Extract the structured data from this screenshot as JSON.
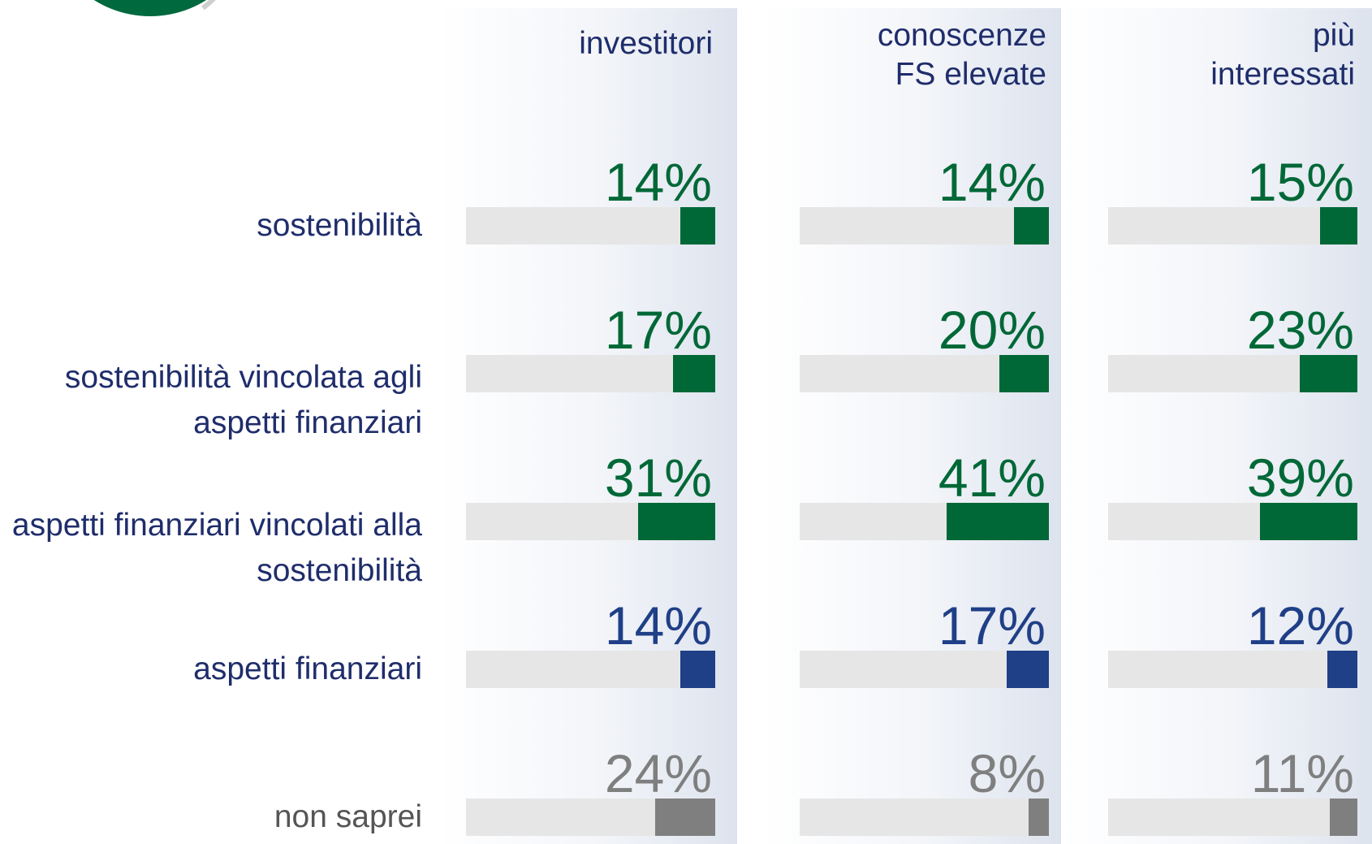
{
  "chart_data": {
    "type": "bar",
    "orientation": "horizontal",
    "categories": [
      "sostenibilità",
      "sostenibilità vincolata agli aspetti finanziari",
      "aspetti finanziari vincolati alla sostenibilità",
      "aspetti finanziari",
      "non saprei"
    ],
    "colors": [
      "#006837",
      "#006837",
      "#006837",
      "#1f3f87",
      "#7f7f7f"
    ],
    "label_colors": [
      "#1f2d6b",
      "#1f2d6b",
      "#1f2d6b",
      "#1f2d6b",
      "#555555"
    ],
    "track_color": "#e6e6e6",
    "xlim": [
      0,
      100
    ],
    "series": [
      {
        "name": "investitori",
        "values": [
          14,
          17,
          31,
          14,
          24
        ],
        "value_labels": [
          "14%",
          "17%",
          "31%",
          "14%",
          "24%"
        ]
      },
      {
        "name": "conoscenze FS elevate",
        "values": [
          14,
          20,
          41,
          17,
          8
        ],
        "value_labels": [
          "14%",
          "20%",
          "41%",
          "17%",
          "8%"
        ]
      },
      {
        "name": "più interessati",
        "values": [
          15,
          23,
          39,
          12,
          11
        ],
        "value_labels": [
          "15%",
          "23%",
          "39%",
          "12%",
          "11%"
        ]
      }
    ]
  }
}
